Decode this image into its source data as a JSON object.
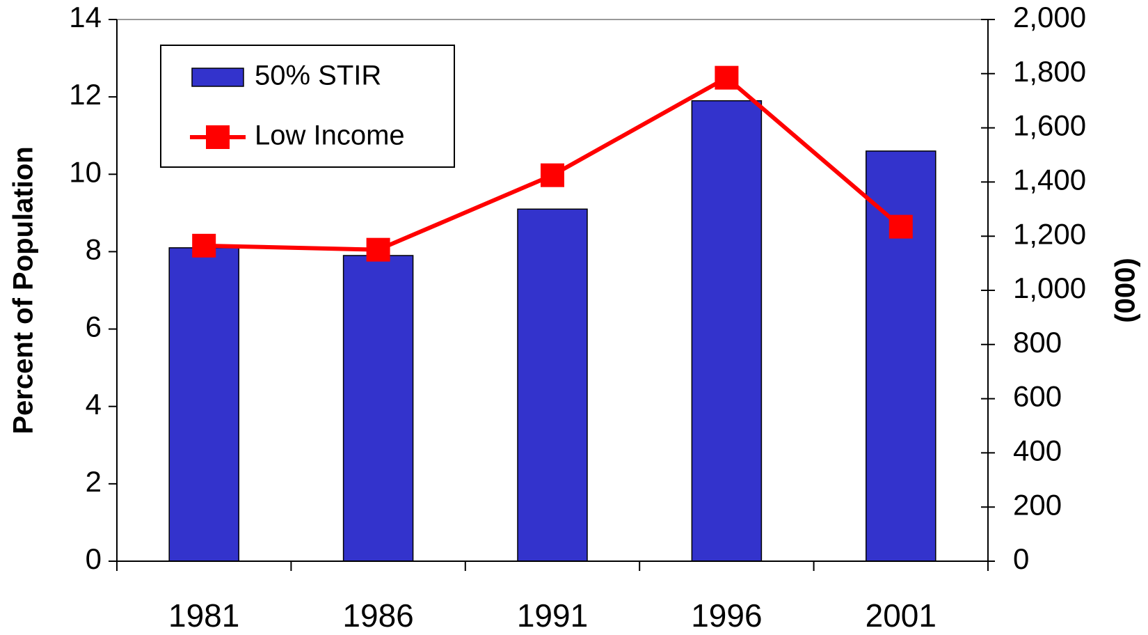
{
  "chart_data": {
    "type": "bar",
    "categories": [
      "1981",
      "1986",
      "1991",
      "1996",
      "2001"
    ],
    "series": [
      {
        "name": "50% STIR",
        "type": "bar",
        "color": "#3333cc",
        "values": [
          8.1,
          7.9,
          9.1,
          11.9,
          10.6
        ]
      },
      {
        "name": "Low Income",
        "type": "line",
        "color": "#ff0000",
        "axis": "y2",
        "values": [
          1165,
          1150,
          1425,
          1785,
          1235
        ]
      }
    ],
    "ylabel": "Percent of Population",
    "y2label": "(000)",
    "ylim": [
      0,
      14
    ],
    "yticks": [
      0,
      2,
      4,
      6,
      8,
      10,
      12,
      14
    ],
    "y2lim": [
      0,
      2000
    ],
    "y2ticks": [
      0,
      200,
      400,
      600,
      800,
      {
        "value": 1000,
        "label": "1,000"
      },
      {
        "value": 1200,
        "label": "1,200"
      },
      {
        "value": 1400,
        "label": "1,400"
      },
      {
        "value": 1600,
        "label": "1,600"
      },
      {
        "value": 1800,
        "label": "1,800"
      },
      {
        "value": 2000,
        "label": "2,000"
      }
    ],
    "legend": "upper left"
  }
}
